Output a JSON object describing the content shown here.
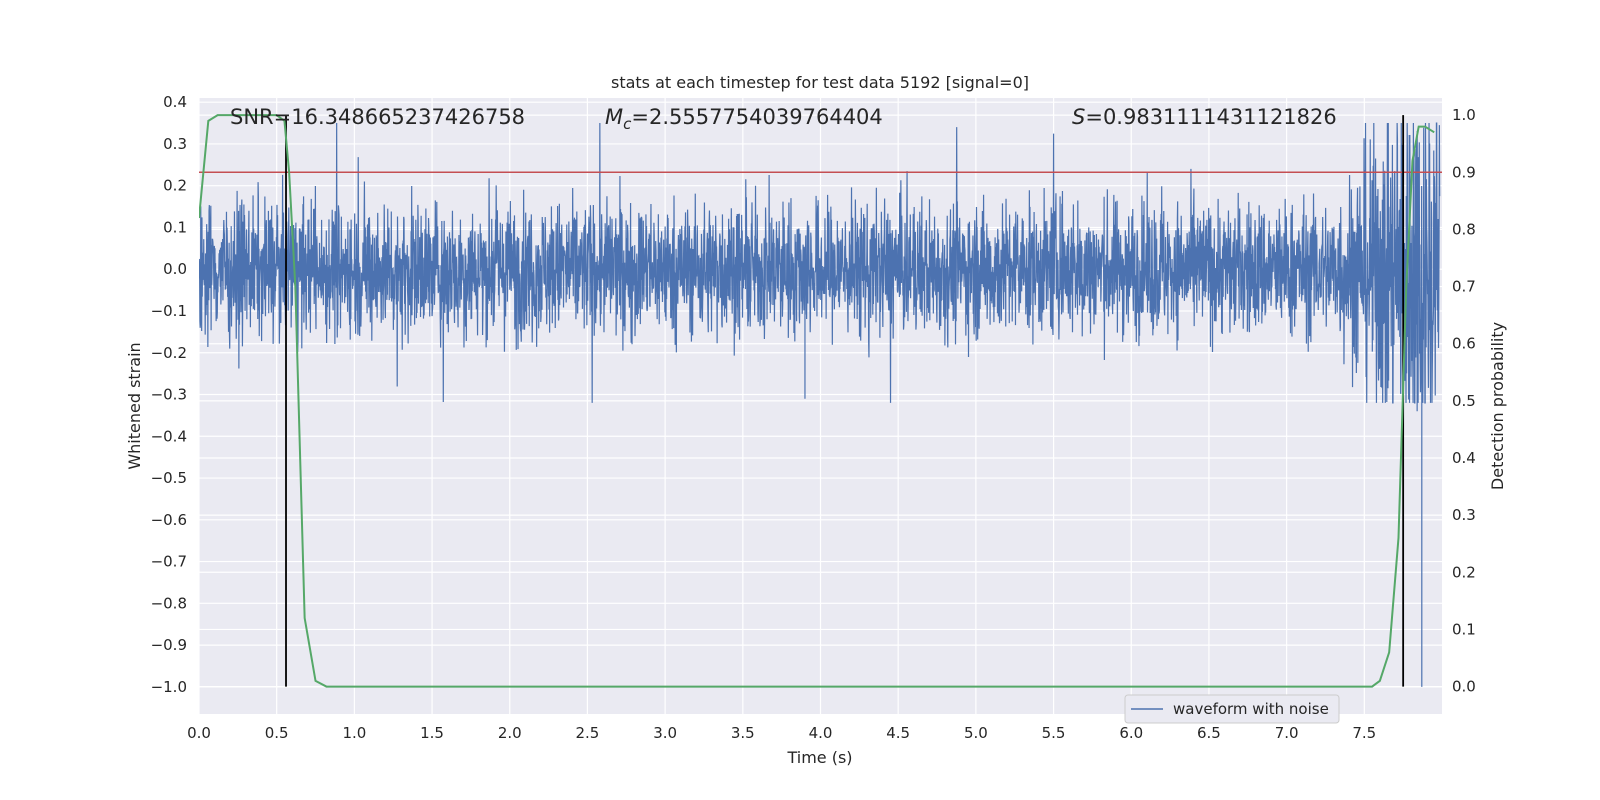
{
  "chart_data": {
    "type": "line",
    "title": "stats at each timestep for test data 5192 [signal=0]",
    "xlabel": "Time (s)",
    "ylabel": "Whitened strain",
    "y2label": "Detection probability",
    "xlim": [
      0.0,
      8.0
    ],
    "ylim": [
      -1.065,
      0.41
    ],
    "y2lim": [
      -0.048,
      1.03
    ],
    "xticks": [
      "0.0",
      "0.5",
      "1.0",
      "1.5",
      "2.0",
      "2.5",
      "3.0",
      "3.5",
      "4.0",
      "4.5",
      "5.0",
      "5.5",
      "6.0",
      "6.5",
      "7.0",
      "7.5"
    ],
    "yticks": [
      "0.4",
      "0.3",
      "0.2",
      "0.1",
      "0.0",
      "−0.1",
      "−0.2",
      "−0.3",
      "−0.4",
      "−0.5",
      "−0.6",
      "−0.7",
      "−0.8",
      "−0.9",
      "−1.0"
    ],
    "y2ticks": [
      "1.0",
      "0.9",
      "0.8",
      "0.7",
      "0.6",
      "0.5",
      "0.4",
      "0.3",
      "0.2",
      "0.1",
      "0.0"
    ],
    "annotations": {
      "snr": "SNR=16.348665237426758",
      "mc_symbol": "M",
      "mc_sub": "c",
      "mc_value": "=2.5557754039764404",
      "s_symbol": "S",
      "s_value": "=0.9831111431121826"
    },
    "threshold": {
      "y2": 0.9,
      "color": "#c44e52"
    },
    "vlines": [
      0.56,
      7.75
    ],
    "series": [
      {
        "name": "waveform with noise",
        "axis": "y",
        "color": "#4c72b0",
        "noise_amplitude": 0.08,
        "max_amplitude": 0.35,
        "min_value": -1.0,
        "t_end": 7.985
      },
      {
        "name": "Detection probability",
        "axis": "y2",
        "color": "#55a868",
        "x": [
          0.0,
          0.06,
          0.12,
          0.2,
          0.3,
          0.4,
          0.5,
          0.55,
          0.58,
          0.62,
          0.68,
          0.75,
          0.82,
          0.9,
          1.5,
          2.5,
          3.5,
          4.5,
          5.5,
          6.5,
          7.0,
          7.4,
          7.55,
          7.6,
          7.66,
          7.72,
          7.77,
          7.81,
          7.85,
          7.89,
          7.95
        ],
        "values": [
          0.82,
          0.99,
          1.0,
          1.0,
          1.0,
          1.0,
          1.0,
          0.99,
          0.9,
          0.7,
          0.12,
          0.01,
          0.0,
          0.0,
          0.0,
          0.0,
          0.0,
          0.0,
          0.0,
          0.0,
          0.0,
          0.0,
          0.0,
          0.01,
          0.06,
          0.26,
          0.7,
          0.92,
          0.98,
          0.98,
          0.97
        ]
      }
    ],
    "legend": {
      "label": "waveform with noise",
      "placement": "lower-right"
    }
  }
}
